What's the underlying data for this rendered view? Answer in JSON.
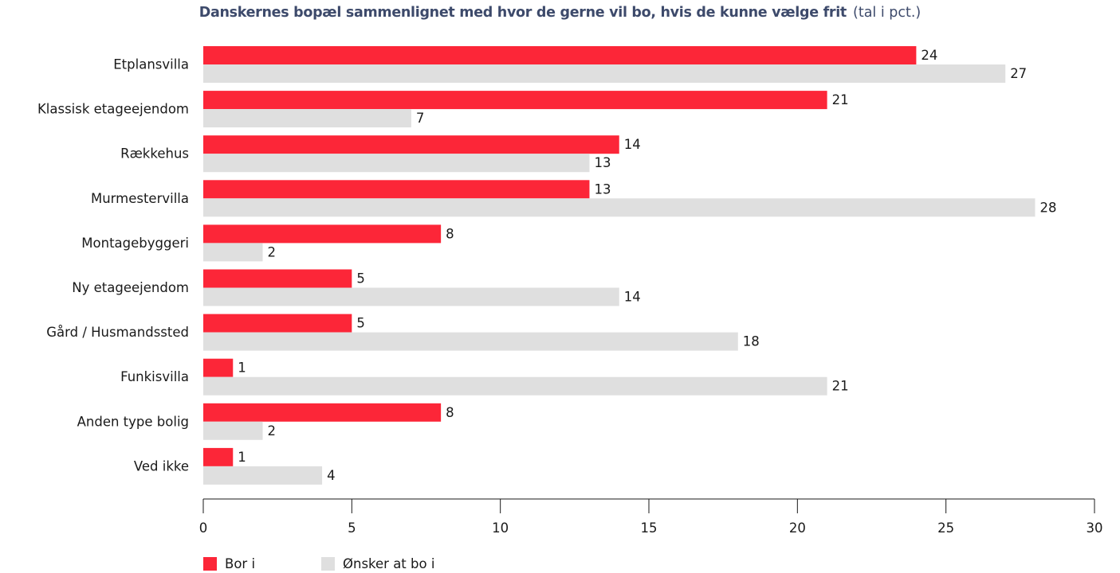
{
  "title": "Danskernes bopæl sammenlignet med hvor de gerne vil bo, hvis de kunne vælge frit",
  "subtitle": "(tal i pct.)",
  "colors": {
    "bor_i": "#fc2638",
    "onsker": "#dfdfdf",
    "axis": "#1a1a1a"
  },
  "chart_data": {
    "type": "bar",
    "orientation": "horizontal",
    "title": "Danskernes bopæl sammenlignet med hvor de gerne vil bo, hvis de kunne vælge frit",
    "subtitle": "(tal i pct.)",
    "categories": [
      "Etplansvilla",
      "Klassisk etageejendom",
      "Rækkehus",
      "Murmestervilla",
      "Montagebyggeri",
      "Ny etageejendom",
      "Gård / Husmandssted",
      "Funkisvilla",
      "Anden type bolig",
      "Ved ikke"
    ],
    "series": [
      {
        "name": "Bor i",
        "values": [
          24,
          21,
          14,
          13,
          8,
          5,
          5,
          1,
          8,
          1
        ]
      },
      {
        "name": "Ønsker at bo i",
        "values": [
          27,
          7,
          13,
          28,
          2,
          14,
          18,
          21,
          2,
          4
        ]
      }
    ],
    "xlim": [
      0,
      30
    ],
    "xticks": [
      0,
      5,
      10,
      15,
      20,
      25,
      30
    ],
    "data_labels": true,
    "grid": false,
    "legend_position": "bottom-left"
  }
}
